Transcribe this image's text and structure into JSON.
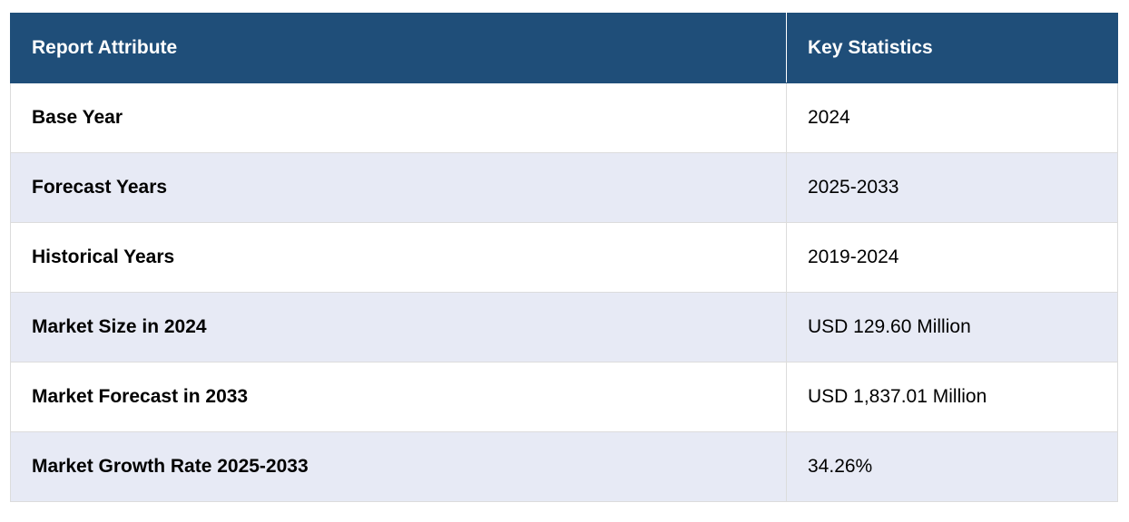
{
  "table": {
    "header": [
      "Report Attribute",
      "Key Statistics"
    ],
    "rows": [
      [
        "Base Year",
        "2024"
      ],
      [
        "Forecast Years",
        "2025-2033"
      ],
      [
        "Historical Years",
        "2019-2024"
      ],
      [
        "Market Size in 2024",
        "USD 129.60 Million"
      ],
      [
        "Market Forecast in 2033",
        "USD 1,837.01 Million"
      ],
      [
        "Market Growth Rate 2025-2033",
        "34.26%"
      ]
    ]
  }
}
